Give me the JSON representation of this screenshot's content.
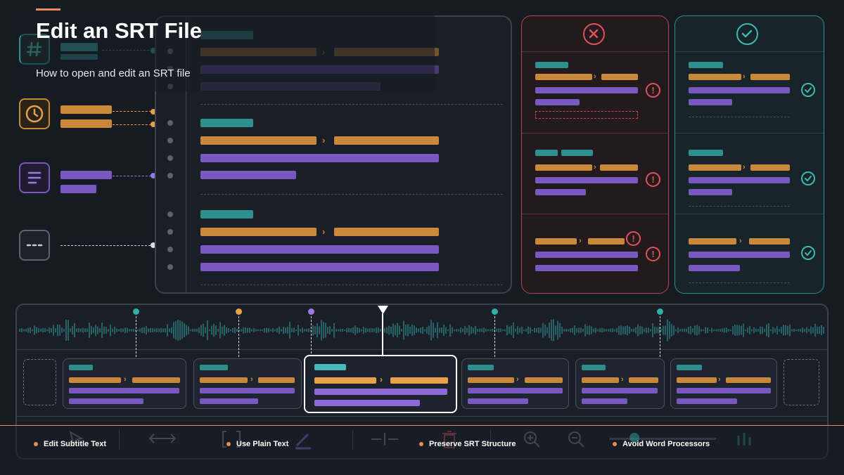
{
  "header": {
    "title": "Edit an SRT File",
    "subtitle": "How to open and edit an SRT file",
    "accent_color": "#e98a5c"
  },
  "status": {
    "wrong_icon": "x-circle-icon",
    "right_icon": "check-circle-icon",
    "wrong_color": "#e0525a",
    "right_color": "#3fb8b0"
  },
  "sidebar_icons": [
    "hash-icon",
    "clock-icon",
    "text-lines-icon",
    "ellipsis-icon"
  ],
  "toolbar_icons": [
    "cursor-icon",
    "resize-arrows-icon",
    "bracket-icon",
    "pen-icon",
    "split-icon",
    "trash-icon",
    "zoom-in-icon",
    "zoom-out-icon",
    "volume-slider-icon",
    "level-bars-icon"
  ],
  "legend": [
    {
      "label": "Edit Subtitle Text"
    },
    {
      "label": "Use Plain Text"
    },
    {
      "label": "Preserve SRT Structure"
    },
    {
      "label": "Avoid Word Processors"
    }
  ],
  "colors": {
    "timecode": "#c9883a",
    "text": "#7a58c2",
    "index": "#2f8f8f",
    "background": "#161b22"
  }
}
